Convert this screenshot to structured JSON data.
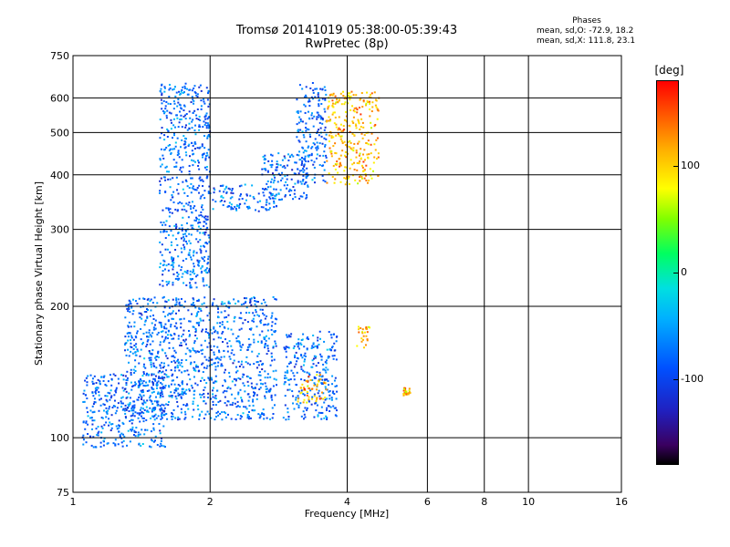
{
  "title": {
    "line1": "Tromsø 20141019 05:38:00-05:39:43",
    "line2": "RwPretec (8p)"
  },
  "phase_box": {
    "header": "Phases",
    "line_o": "mean, sd,O: -72.9, 18.2",
    "line_x": "mean, sd,X: 111.8, 23.1"
  },
  "colorbar": {
    "unit": "[deg]",
    "min": -180,
    "max": 180,
    "ticks": [
      {
        "value": 100,
        "label": "100"
      },
      {
        "value": 0,
        "label": "0"
      },
      {
        "value": -100,
        "label": "-100"
      }
    ],
    "colors": [
      "#000000",
      "#3a0060",
      "#2020c0",
      "#0050ff",
      "#00b0ff",
      "#00e0e0",
      "#00ff60",
      "#80ff00",
      "#ffff00",
      "#ffb000",
      "#ff5000",
      "#ff0000"
    ]
  },
  "chart_data": {
    "type": "scatter",
    "title": "Tromsø 20141019 05:38:00-05:39:43",
    "subtitle": "RwPretec (8p)",
    "xlabel": "Frequency [MHz]",
    "ylabel": "Stationary phase Virtual Height [km]",
    "x_scale": "log",
    "y_scale": "log",
    "xlim": [
      1,
      16
    ],
    "ylim": [
      75,
      750
    ],
    "x_ticks": [
      1,
      2,
      4,
      6,
      8,
      10,
      16
    ],
    "x_tick_labels": [
      "1",
      "2",
      "4",
      "6",
      "8",
      "10",
      "16"
    ],
    "y_ticks": [
      75,
      100,
      200,
      300,
      400,
      500,
      600,
      750
    ],
    "y_tick_labels": [
      "75",
      "100",
      "200",
      "300",
      "400",
      "500",
      "600",
      "750"
    ],
    "grid": true,
    "colorbar_label": "[deg]",
    "series": [
      {
        "mode": "O",
        "phase_mean": -72.9,
        "phase_sd": 18.2,
        "clusters": [
          {
            "f": [
              1.55,
              2.0
            ],
            "h": [
              220,
              650
            ]
          },
          {
            "f": [
              2.0,
              2.8
            ],
            "h": [
              330,
              380
            ]
          },
          {
            "f": [
              2.6,
              3.3
            ],
            "h": [
              350,
              450
            ]
          },
          {
            "f": [
              3.1,
              3.6
            ],
            "h": [
              380,
              650
            ]
          },
          {
            "f": [
              1.3,
              2.8
            ],
            "h": [
              110,
              210
            ]
          },
          {
            "f": [
              1.05,
              1.6
            ],
            "h": [
              95,
              140
            ]
          },
          {
            "f": [
              2.9,
              3.8
            ],
            "h": [
              110,
              175
            ]
          }
        ]
      },
      {
        "mode": "X",
        "phase_mean": 111.8,
        "phase_sd": 23.1,
        "clusters": [
          {
            "f": [
              3.6,
              4.7
            ],
            "h": [
              380,
              620
            ]
          },
          {
            "f": [
              3.1,
              3.6
            ],
            "h": [
              120,
              140
            ]
          },
          {
            "f": [
              4.2,
              4.5
            ],
            "h": [
              160,
              180
            ]
          },
          {
            "f": [
              5.3,
              5.5
            ],
            "h": [
              125,
              130
            ]
          }
        ]
      }
    ]
  }
}
